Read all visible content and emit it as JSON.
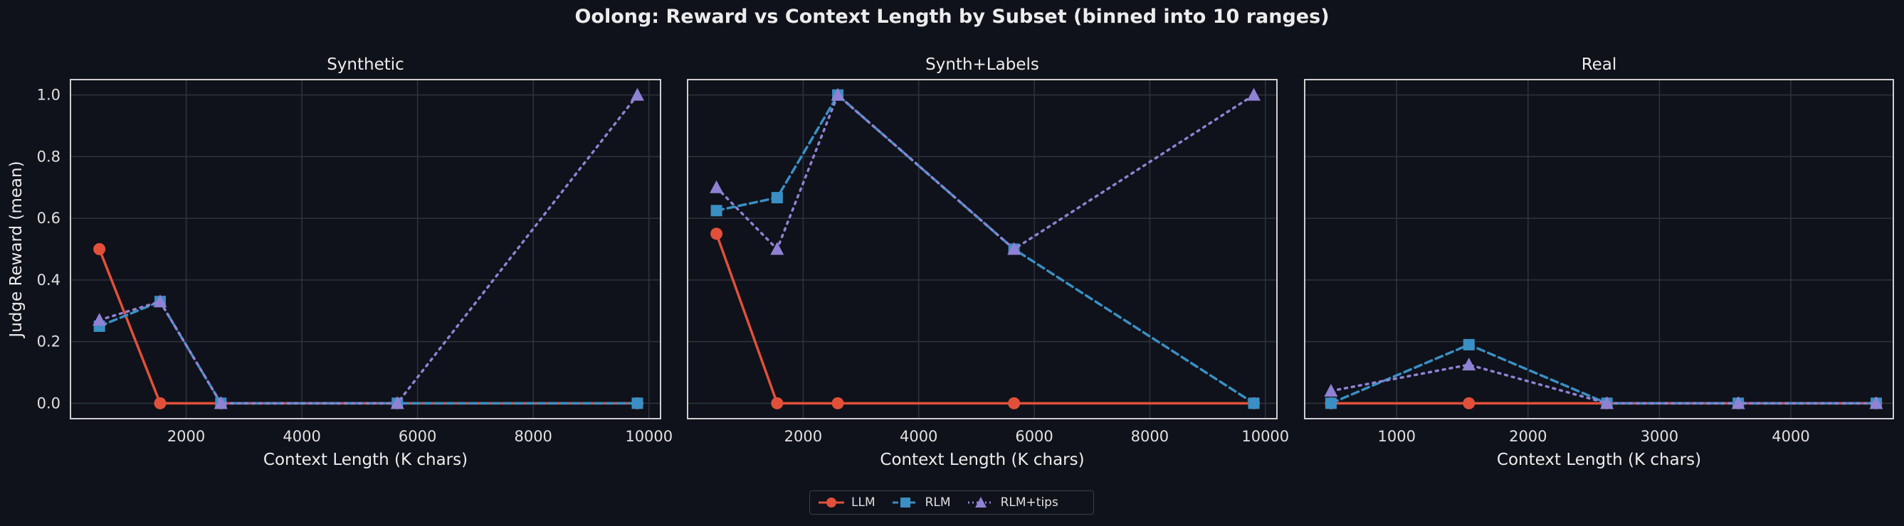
{
  "suptitle": "Oolong: Reward vs Context Length by Subset (binned into 10 ranges)",
  "colors": {
    "background": "#0f121a",
    "grid": "#2e333d",
    "axes": "#cfcfcf",
    "llm": "#e2503a",
    "rlm": "#3a8fc4",
    "rlm_tips": "#8f82d4"
  },
  "legend": [
    {
      "name": "LLM",
      "marker": "circle",
      "style": "solid",
      "color": "#e2503a"
    },
    {
      "name": "RLM",
      "marker": "square",
      "style": "dashed",
      "color": "#3a8fc4"
    },
    {
      "name": "RLM+tips",
      "marker": "triangle",
      "style": "dotted",
      "color": "#8f82d4"
    }
  ],
  "chart_data": [
    {
      "type": "line",
      "title": "Synthetic",
      "xlabel": "Context Length (K chars)",
      "ylabel": "Judge Reward (mean)",
      "xlim": [
        0,
        10200
      ],
      "ylim": [
        -0.05,
        1.05
      ],
      "xticks": [
        2000,
        4000,
        6000,
        8000,
        10000
      ],
      "yticks": [
        0.0,
        0.2,
        0.4,
        0.6,
        0.8,
        1.0
      ],
      "grid": true,
      "series": [
        {
          "name": "LLM",
          "x": [
            500,
            1550,
            2600,
            5650,
            9800
          ],
          "y": [
            0.5,
            0.0,
            0.0,
            0.0,
            0.0
          ]
        },
        {
          "name": "RLM",
          "x": [
            500,
            1550,
            2600,
            5650,
            9800
          ],
          "y": [
            0.25,
            0.33,
            0.0,
            0.0,
            0.0
          ]
        },
        {
          "name": "RLM+tips",
          "x": [
            500,
            1550,
            2600,
            5650,
            9800
          ],
          "y": [
            0.27,
            0.33,
            0.0,
            0.0,
            1.0
          ]
        }
      ]
    },
    {
      "type": "line",
      "title": "Synth+Labels",
      "xlabel": "Context Length (K chars)",
      "ylabel": "",
      "xlim": [
        0,
        10200
      ],
      "ylim": [
        -0.05,
        1.05
      ],
      "xticks": [
        2000,
        4000,
        6000,
        8000,
        10000
      ],
      "yticks": [
        0.0,
        0.2,
        0.4,
        0.6,
        0.8,
        1.0
      ],
      "grid": true,
      "series": [
        {
          "name": "LLM",
          "x": [
            500,
            1550,
            2600,
            5650,
            9800
          ],
          "y": [
            0.55,
            0.0,
            0.0,
            0.0,
            0.0
          ]
        },
        {
          "name": "RLM",
          "x": [
            500,
            1550,
            2600,
            5650,
            9800
          ],
          "y": [
            0.625,
            0.667,
            1.0,
            0.5,
            0.0
          ]
        },
        {
          "name": "RLM+tips",
          "x": [
            500,
            1550,
            2600,
            5650,
            9800
          ],
          "y": [
            0.7,
            0.5,
            1.0,
            0.5,
            1.0
          ]
        }
      ]
    },
    {
      "type": "line",
      "title": "Real",
      "xlabel": "Context Length (K chars)",
      "ylabel": "",
      "xlim": [
        300,
        4780
      ],
      "ylim": [
        -0.05,
        1.05
      ],
      "xticks": [
        1000,
        2000,
        3000,
        4000
      ],
      "yticks": [
        0.0,
        0.2,
        0.4,
        0.6,
        0.8,
        1.0
      ],
      "grid": true,
      "series": [
        {
          "name": "LLM",
          "x": [
            500,
            1550,
            2600,
            3600,
            4650
          ],
          "y": [
            0.0,
            0.0,
            0.0,
            0.0,
            0.0
          ]
        },
        {
          "name": "RLM",
          "x": [
            500,
            1550,
            2600,
            3600,
            4650
          ],
          "y": [
            0.0,
            0.19,
            0.0,
            0.0,
            0.0
          ]
        },
        {
          "name": "RLM+tips",
          "x": [
            500,
            1550,
            2600,
            3600,
            4650
          ],
          "y": [
            0.04,
            0.125,
            0.0,
            0.0,
            0.0
          ]
        }
      ]
    }
  ]
}
